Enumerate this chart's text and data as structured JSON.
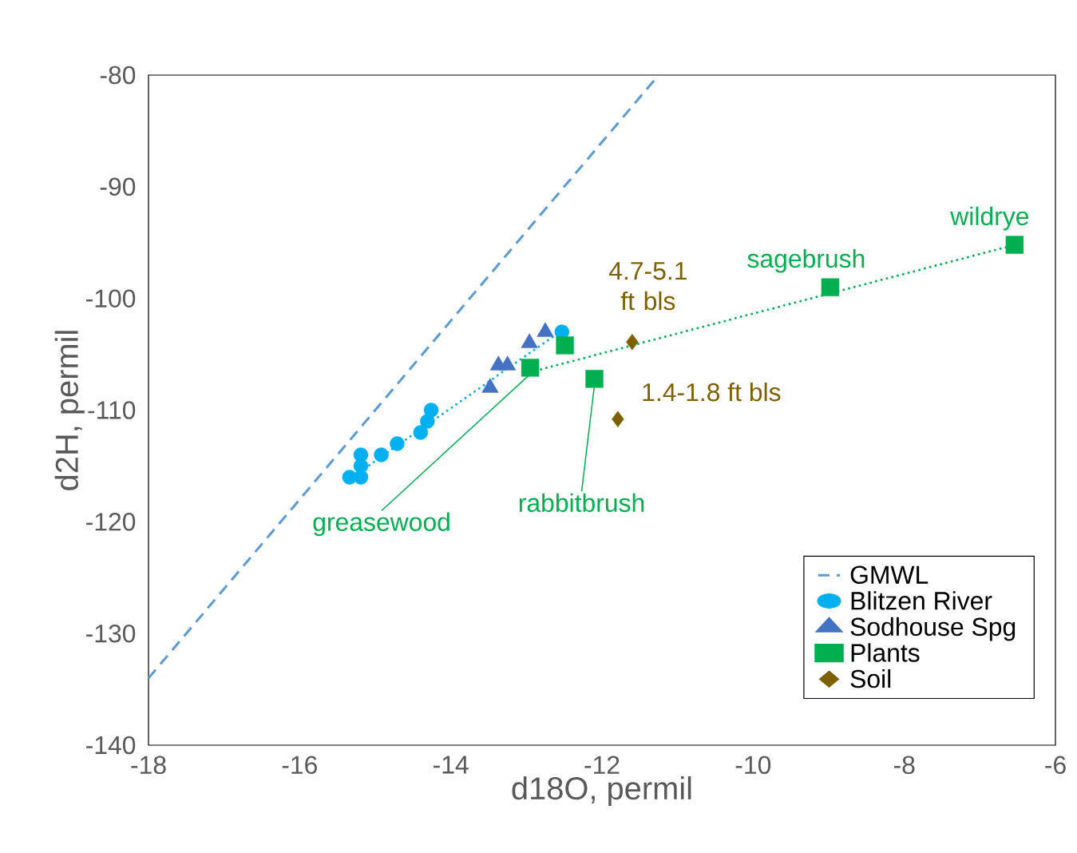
{
  "chart_data": {
    "type": "scatter",
    "xlabel": "d18O, permil",
    "ylabel": "d2H, permil",
    "xlim": [
      -18,
      -6
    ],
    "ylim": [
      -140,
      -80
    ],
    "xticks": [
      -18,
      -16,
      -14,
      -12,
      -10,
      -8,
      -6
    ],
    "yticks": [
      -140,
      -130,
      -120,
      -110,
      -100,
      -90,
      -80
    ],
    "grid": false,
    "legend": "bottom right",
    "series": [
      {
        "name": "GMWL",
        "type": "line",
        "line_style": "dashed",
        "marker": "none",
        "color": "#5b9bd5",
        "x": [
          -18,
          -11.25
        ],
        "values": [
          -134,
          -80
        ]
      },
      {
        "name": "Blitzen River",
        "marker": "circle",
        "color": "#00b0f0",
        "x": [
          -15.34,
          -15.19,
          -15.19,
          -15.19,
          -14.92,
          -14.71,
          -14.4,
          -14.31,
          -14.26,
          -12.53
        ],
        "values": [
          -116,
          -116,
          -115,
          -114,
          -114,
          -113,
          -112,
          -111,
          -110,
          -103
        ]
      },
      {
        "name": "Sodhouse Spg",
        "marker": "triangle",
        "color": "#4472c4",
        "x": [
          -13.48,
          -13.37,
          -13.25,
          -13.0,
          -12.96,
          -12.75
        ],
        "values": [
          -108,
          -106,
          -106,
          null,
          -104,
          -103
        ]
      },
      {
        "name": "Plants",
        "marker": "square",
        "color": "#00b050",
        "x": [
          -12.95,
          -12.49,
          -12.1,
          -8.98,
          -6.54
        ],
        "values": [
          -106.2,
          -104.2,
          -107.2,
          -99,
          -95.2
        ]
      },
      {
        "name": "Soil",
        "marker": "diamond",
        "color": "#7f6000",
        "x": [
          -11.6,
          -11.79
        ],
        "values": [
          -103.9,
          -110.8
        ]
      },
      {
        "type": "line",
        "line_style": "dotted",
        "marker": "none",
        "color": "#00b0f0",
        "x": [
          -15.2,
          -12.6
        ],
        "values": [
          -115.5,
          -103.2
        ]
      },
      {
        "type": "line",
        "line_style": "dotted",
        "marker": "none",
        "color": "#00b050",
        "x": [
          -12.95,
          -6.54
        ],
        "values": [
          -106.6,
          -95.2
        ]
      }
    ],
    "annotations": [
      {
        "text": "greasewood",
        "x": -12.95,
        "y": -106.2
      },
      {
        "text": "rabbitbrush",
        "x": -12.1,
        "y": -107.2
      },
      {
        "text": "sagebrush",
        "x": -8.98,
        "y": -99
      },
      {
        "text": "wildrye",
        "x": -6.54,
        "y": -95.2
      },
      {
        "text": "4.7-5.1 ft bls",
        "x": -11.6,
        "y": -103.9
      },
      {
        "text": "1.4-1.8 ft bls",
        "x": -11.79,
        "y": -110.8
      }
    ]
  }
}
